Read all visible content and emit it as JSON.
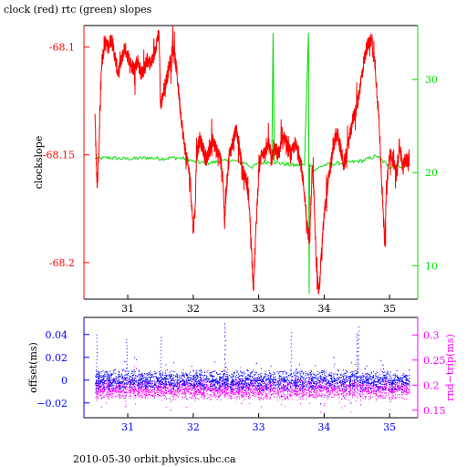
{
  "title": "clock (red) rtc (green) slopes",
  "footer": "2010-05-30 orbit.physics.ubc.ca",
  "colors": {
    "red": "#ff0000",
    "green": "#00dd00",
    "blue": "#0000ff",
    "magenta": "#ff00ff",
    "axis": "#000000"
  },
  "chart_data": [
    {
      "type": "line",
      "title": "clock (red) rtc (green) slopes",
      "ylabel": "clockslope",
      "xlim": [
        30.33,
        35.43
      ],
      "ylim": [
        -68.217,
        -68.09
      ],
      "y2lim": [
        6.4,
        35.8
      ],
      "x_ticks": [
        "31",
        "32",
        "33",
        "34",
        "35"
      ],
      "y_ticks": [
        "-68.1",
        "-68.15",
        "-68.2"
      ],
      "y2_ticks": [
        "10",
        "20",
        "30"
      ],
      "series": [
        {
          "color": "red",
          "axis": "left",
          "points": [
            [
              30.5,
              -68.132
            ],
            [
              30.53,
              -68.165
            ],
            [
              30.56,
              -68.148
            ],
            [
              30.6,
              -68.107
            ],
            [
              30.65,
              -68.098
            ],
            [
              30.7,
              -68.1
            ],
            [
              30.75,
              -68.096
            ],
            [
              30.8,
              -68.104
            ],
            [
              30.85,
              -68.112
            ],
            [
              30.9,
              -68.107
            ],
            [
              30.95,
              -68.1
            ],
            [
              31.0,
              -68.104
            ],
            [
              31.05,
              -68.108
            ],
            [
              31.1,
              -68.11
            ],
            [
              31.15,
              -68.106
            ],
            [
              31.2,
              -68.112
            ],
            [
              31.25,
              -68.11
            ],
            [
              31.3,
              -68.106
            ],
            [
              31.35,
              -68.108
            ],
            [
              31.4,
              -68.104
            ],
            [
              31.45,
              -68.096
            ],
            [
              31.48,
              -68.095
            ],
            [
              31.5,
              -68.128
            ],
            [
              31.55,
              -68.12
            ],
            [
              31.6,
              -68.114
            ],
            [
              31.65,
              -68.106
            ],
            [
              31.7,
              -68.1
            ],
            [
              31.75,
              -68.112
            ],
            [
              31.8,
              -68.128
            ],
            [
              31.85,
              -68.142
            ],
            [
              31.9,
              -68.152
            ],
            [
              31.95,
              -68.16
            ],
            [
              32.0,
              -68.185
            ],
            [
              32.03,
              -68.175
            ],
            [
              32.05,
              -68.15
            ],
            [
              32.1,
              -68.143
            ],
            [
              32.15,
              -68.147
            ],
            [
              32.2,
              -68.153
            ],
            [
              32.25,
              -68.148
            ],
            [
              32.3,
              -68.143
            ],
            [
              32.35,
              -68.148
            ],
            [
              32.4,
              -68.15
            ],
            [
              32.45,
              -68.158
            ],
            [
              32.48,
              -68.182
            ],
            [
              32.5,
              -68.168
            ],
            [
              32.55,
              -68.15
            ],
            [
              32.6,
              -68.145
            ],
            [
              32.65,
              -68.138
            ],
            [
              32.7,
              -68.145
            ],
            [
              32.75,
              -68.158
            ],
            [
              32.8,
              -68.16
            ],
            [
              32.85,
              -68.17
            ],
            [
              32.88,
              -68.188
            ],
            [
              32.9,
              -68.2
            ],
            [
              32.92,
              -68.212
            ],
            [
              32.95,
              -68.19
            ],
            [
              33.0,
              -68.158
            ],
            [
              33.05,
              -68.148
            ],
            [
              33.1,
              -68.15
            ],
            [
              33.15,
              -68.145
            ],
            [
              33.2,
              -68.152
            ],
            [
              33.25,
              -68.147
            ],
            [
              33.3,
              -68.15
            ],
            [
              33.35,
              -68.145
            ],
            [
              33.4,
              -68.142
            ],
            [
              33.45,
              -68.147
            ],
            [
              33.5,
              -68.15
            ],
            [
              33.55,
              -68.145
            ],
            [
              33.6,
              -68.148
            ],
            [
              33.65,
              -68.155
            ],
            [
              33.7,
              -68.168
            ],
            [
              33.75,
              -68.185
            ],
            [
              33.78,
              -68.19
            ],
            [
              33.8,
              -68.17
            ],
            [
              33.82,
              -68.155
            ],
            [
              33.85,
              -68.172
            ],
            [
              33.88,
              -68.2
            ],
            [
              33.92,
              -68.215
            ],
            [
              33.95,
              -68.2
            ],
            [
              34.0,
              -68.178
            ],
            [
              34.05,
              -68.165
            ],
            [
              34.1,
              -68.155
            ],
            [
              34.15,
              -68.145
            ],
            [
              34.2,
              -68.14
            ],
            [
              34.25,
              -68.147
            ],
            [
              34.3,
              -68.155
            ],
            [
              34.35,
              -68.148
            ],
            [
              34.4,
              -68.14
            ],
            [
              34.45,
              -68.132
            ],
            [
              34.5,
              -68.128
            ],
            [
              34.55,
              -68.118
            ],
            [
              34.6,
              -68.108
            ],
            [
              34.65,
              -68.1
            ],
            [
              34.7,
              -68.098
            ],
            [
              34.73,
              -68.095
            ],
            [
              34.75,
              -68.105
            ],
            [
              34.78,
              -68.108
            ],
            [
              34.8,
              -68.118
            ],
            [
              34.83,
              -68.13
            ],
            [
              34.87,
              -68.155
            ],
            [
              34.9,
              -68.178
            ],
            [
              34.93,
              -68.19
            ],
            [
              34.95,
              -68.165
            ],
            [
              35.0,
              -68.15
            ],
            [
              35.05,
              -68.152
            ],
            [
              35.1,
              -68.16
            ],
            [
              35.15,
              -68.145
            ],
            [
              35.2,
              -68.156
            ],
            [
              35.25,
              -68.152
            ],
            [
              35.3,
              -68.155
            ]
          ]
        },
        {
          "color": "green",
          "axis": "right",
          "points": [
            [
              30.5,
              21.5
            ],
            [
              30.7,
              21.6
            ],
            [
              30.9,
              21.5
            ],
            [
              31.1,
              21.5
            ],
            [
              31.3,
              21.6
            ],
            [
              31.5,
              21.5
            ],
            [
              31.7,
              21.6
            ],
            [
              31.9,
              21.5
            ],
            [
              32.0,
              21.2
            ],
            [
              32.2,
              21.0
            ],
            [
              32.4,
              21.2
            ],
            [
              32.6,
              21.3
            ],
            [
              32.8,
              21.0
            ],
            [
              32.9,
              20.6
            ],
            [
              33.0,
              21.0
            ],
            [
              33.2,
              21.2
            ],
            [
              33.22,
              35.0
            ],
            [
              33.24,
              21.1
            ],
            [
              33.5,
              20.8
            ],
            [
              33.7,
              20.8
            ],
            [
              33.76,
              35.0
            ],
            [
              33.77,
              7.0
            ],
            [
              33.78,
              21.0
            ],
            [
              33.85,
              20.3
            ],
            [
              34.0,
              20.8
            ],
            [
              34.2,
              21.0
            ],
            [
              34.4,
              21.1
            ],
            [
              34.6,
              21.3
            ],
            [
              34.8,
              21.8
            ],
            [
              35.0,
              20.6
            ],
            [
              35.3,
              20.8
            ]
          ]
        }
      ]
    },
    {
      "type": "scatter",
      "ylabel": "offset(ms)",
      "y2label": "rnd−trip(ms)",
      "xlim": [
        30.33,
        35.43
      ],
      "ylim": [
        -0.033,
        0.055
      ],
      "y2lim": [
        0.135,
        0.335
      ],
      "x_ticks": [
        "31",
        "32",
        "33",
        "34",
        "35"
      ],
      "y_ticks": [
        "0.04",
        "0.02",
        "0",
        "−0.02"
      ],
      "y2_ticks": [
        "0.3",
        "0.25",
        "0.2",
        "0.15"
      ],
      "series": [
        {
          "color": "blue",
          "axis": "left",
          "band": [
            -0.01,
            0.01
          ],
          "points_per_day": 700,
          "spikes": [
            [
              30.52,
              0.04
            ],
            [
              30.98,
              0.036
            ],
            [
              31.5,
              0.038
            ],
            [
              32.48,
              0.05
            ],
            [
              33.49,
              0.042
            ],
            [
              34.5,
              0.041
            ],
            [
              34.52,
              0.047
            ]
          ]
        },
        {
          "color": "magenta",
          "axis": "right",
          "band": [
            0.17,
            0.215
          ],
          "points_per_day": 700,
          "spikes": [
            [
              32.48,
              0.32
            ],
            [
              34.5,
              0.3
            ]
          ]
        }
      ]
    }
  ]
}
